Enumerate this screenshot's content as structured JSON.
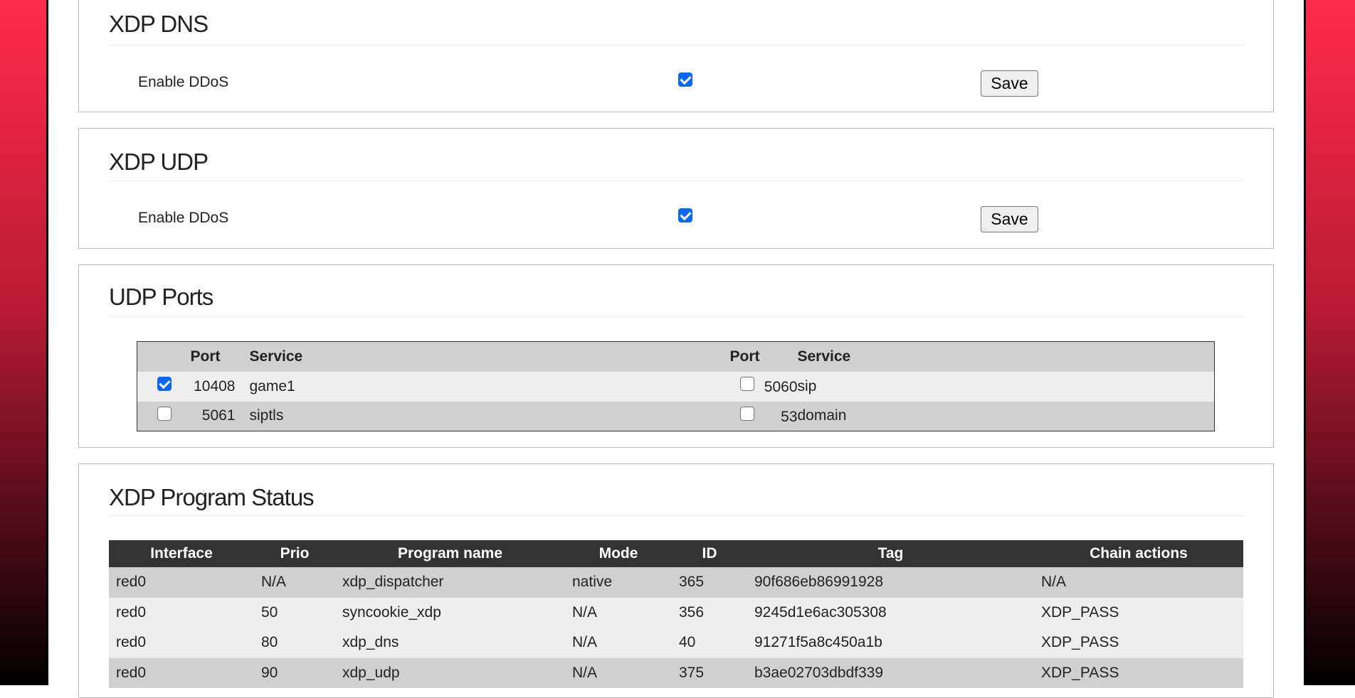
{
  "xdp_dns": {
    "title": "XDP DNS",
    "label": "Enable DDoS",
    "enabled": true,
    "save": "Save"
  },
  "xdp_udp": {
    "title": "XDP UDP",
    "label": "Enable DDoS",
    "enabled": true,
    "save": "Save"
  },
  "udp_ports": {
    "title": "UDP Ports",
    "headers": {
      "port": "Port",
      "service": "Service"
    },
    "rows": [
      [
        {
          "checked": true,
          "port": "10408",
          "service": "game1"
        },
        {
          "checked": false,
          "port": "5060",
          "service": "sip"
        }
      ],
      [
        {
          "checked": false,
          "port": "5061",
          "service": "siptls"
        },
        {
          "checked": false,
          "port": "53",
          "service": "domain"
        }
      ]
    ]
  },
  "xdp_status": {
    "title": "XDP Program Status",
    "headers": [
      "Interface",
      "Prio",
      "Program name",
      "Mode",
      "ID",
      "Tag",
      "Chain actions"
    ],
    "rows": [
      [
        "red0",
        "N/A",
        "xdp_dispatcher",
        "native",
        "365",
        "90f686eb86991928",
        "N/A"
      ],
      [
        "red0",
        "50",
        "syncookie_xdp",
        "N/A",
        "356",
        "9245d1e6ac305308",
        "XDP_PASS"
      ],
      [
        "red0",
        "80",
        "xdp_dns",
        "N/A",
        "40",
        "91271f5a8c450a1b",
        "XDP_PASS"
      ],
      [
        "red0",
        "90",
        "xdp_udp",
        "N/A",
        "375",
        "b3ae02703dbdf339",
        "XDP_PASS"
      ]
    ]
  }
}
